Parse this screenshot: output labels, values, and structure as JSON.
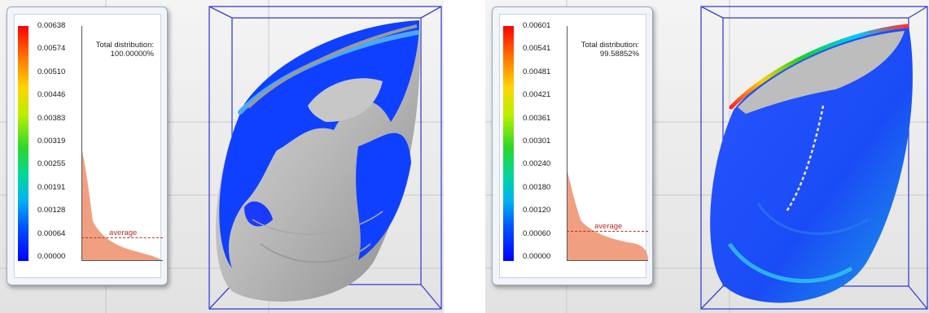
{
  "viewports": [
    {
      "legend": {
        "title_line1": "Total distribution:",
        "title_line2": "100.00000%",
        "ticks": [
          "0.00638",
          "0.00574",
          "0.00510",
          "0.00446",
          "0.00383",
          "0.00319",
          "0.00255",
          "0.00191",
          "0.00128",
          "0.00064",
          "0.00000"
        ],
        "average_label": "average",
        "average_value": 0.00064,
        "max_value": 0.00638,
        "histogram_color": "#f0a080"
      }
    },
    {
      "legend": {
        "title_line1": "Total distribution:",
        "title_line2": "99.58852%",
        "ticks": [
          "0.00601",
          "0.00541",
          "0.00481",
          "0.00421",
          "0.00361",
          "0.00301",
          "0.00240",
          "0.00180",
          "0.00120",
          "0.00060",
          "0.00000"
        ],
        "average_label": "average",
        "average_value": 0.00072,
        "max_value": 0.00601,
        "histogram_color": "#f0a080"
      }
    }
  ],
  "colors": {
    "bounding_box": "#3a40d0",
    "surface_gray": "#b4b4b4",
    "deviation_blue": "#1040ff"
  }
}
